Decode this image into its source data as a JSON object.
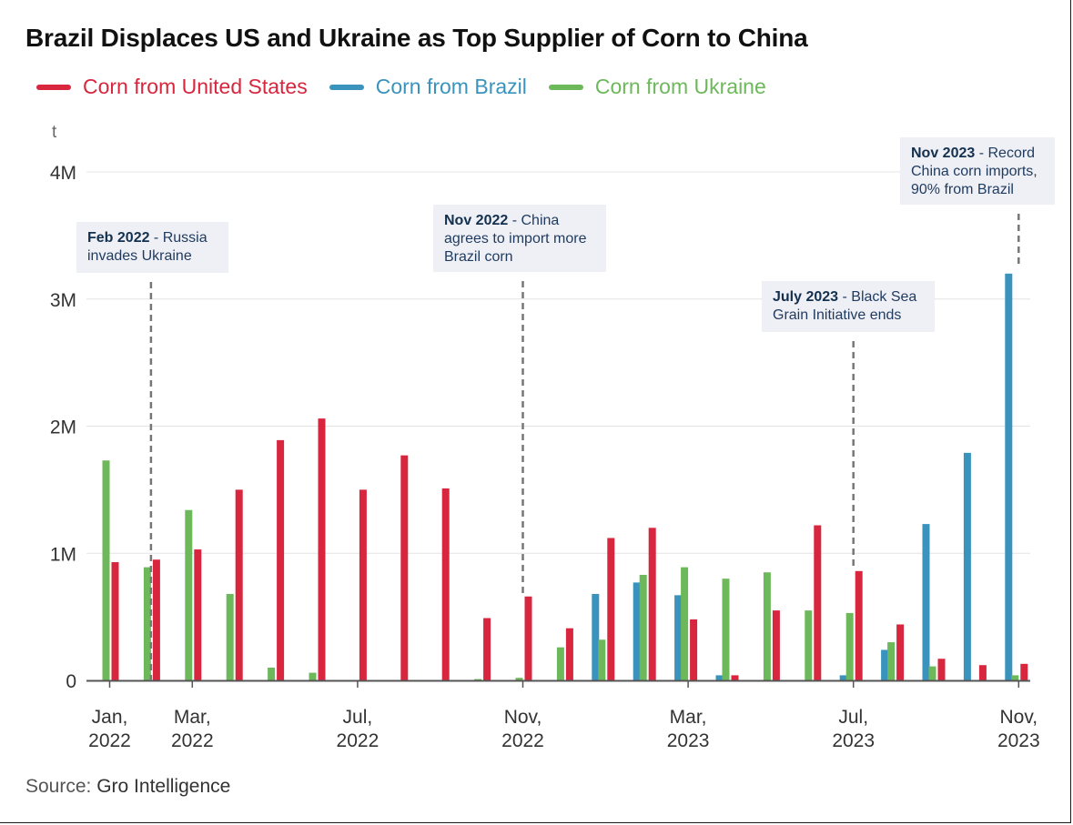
{
  "title": "Brazil Displaces US and Ukraine as Top Supplier of Corn to China",
  "source_prefix": "Source:",
  "source_name": "Gro Intelligence",
  "annotations": [
    {
      "month": "2022-02",
      "bold": "Feb 2022",
      "text": " - Russia invades Ukraine"
    },
    {
      "month": "2022-11",
      "bold": "Nov 2022",
      "text": " - China agrees to import more Brazil corn"
    },
    {
      "month": "2023-07",
      "bold": "July 2023",
      "text": " - Black Sea Grain Initiative ends"
    },
    {
      "month": "2023-11",
      "bold": "Nov 2023",
      "text": " - Record China corn imports, 90% from Brazil"
    }
  ],
  "chart_data": {
    "type": "bar",
    "title": "Brazil Displaces US and Ukraine as Top Supplier of Corn to China",
    "ylabel": "t",
    "ylim": [
      0,
      4000000
    ],
    "y_ticks": [
      0,
      1000000,
      2000000,
      3000000,
      4000000
    ],
    "y_tick_labels": [
      "0",
      "1M",
      "2M",
      "3M",
      "4M"
    ],
    "x_ticks": [
      {
        "month": "2022-01",
        "label": [
          "Jan,",
          "2022"
        ]
      },
      {
        "month": "2022-03",
        "label": [
          "Mar,",
          "2022"
        ]
      },
      {
        "month": "2022-07",
        "label": [
          "Jul,",
          "2022"
        ]
      },
      {
        "month": "2022-11",
        "label": [
          "Nov,",
          "2022"
        ]
      },
      {
        "month": "2023-03",
        "label": [
          "Mar,",
          "2023"
        ]
      },
      {
        "month": "2023-07",
        "label": [
          "Jul,",
          "2023"
        ]
      },
      {
        "month": "2023-11",
        "label": [
          "Nov,",
          "2023"
        ]
      }
    ],
    "legend_position": "top-left",
    "grid": true,
    "categories": [
      "2022-01",
      "2022-02",
      "2022-03",
      "2022-04",
      "2022-05",
      "2022-06",
      "2022-07",
      "2022-08",
      "2022-09",
      "2022-10",
      "2022-11",
      "2022-12",
      "2023-01",
      "2023-02",
      "2023-03",
      "2023-04",
      "2023-05",
      "2023-06",
      "2023-07",
      "2023-08",
      "2023-09",
      "2023-10",
      "2023-11"
    ],
    "series": [
      {
        "name": "Corn from Brazil",
        "color": "#3a93bd",
        "values": [
          0,
          0,
          0,
          0,
          0,
          0,
          0,
          0,
          0,
          0,
          0,
          0,
          680000,
          770000,
          670000,
          40000,
          0,
          0,
          40000,
          240000,
          1230000,
          1790000,
          3200000
        ]
      },
      {
        "name": "Corn from Ukraine",
        "color": "#6cb85a",
        "values": [
          1730000,
          890000,
          1340000,
          680000,
          100000,
          60000,
          0,
          0,
          0,
          10000,
          20000,
          260000,
          320000,
          830000,
          890000,
          800000,
          850000,
          550000,
          530000,
          300000,
          110000,
          0,
          40000
        ]
      },
      {
        "name": "Corn from United States",
        "color": "#d7263d",
        "values": [
          930000,
          950000,
          1030000,
          1500000,
          1890000,
          2060000,
          1500000,
          1770000,
          1510000,
          490000,
          660000,
          410000,
          1120000,
          1200000,
          480000,
          40000,
          550000,
          1220000,
          860000,
          440000,
          170000,
          120000,
          130000
        ]
      }
    ],
    "legend_order": [
      "Corn from United States",
      "Corn from Brazil",
      "Corn from Ukraine"
    ]
  }
}
